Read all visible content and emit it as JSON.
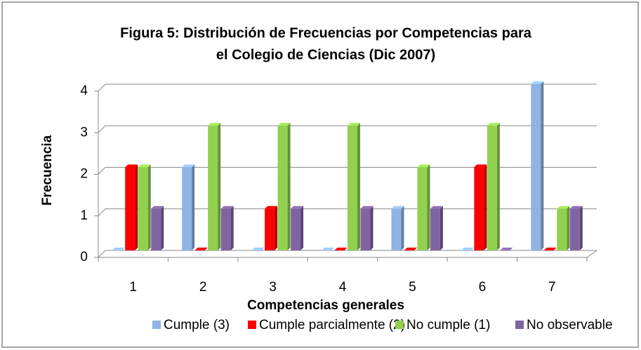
{
  "chart_data": {
    "type": "bar3d",
    "title": [
      "Figura 5: Distribución de Frecuencias por Competencias para",
      "el Colegio de Ciencias (Dic 2007)"
    ],
    "xlabel": "Competencias generales",
    "ylabel": "Frecuencia",
    "categories": [
      "1",
      "2",
      "3",
      "4",
      "5",
      "6",
      "7"
    ],
    "series": [
      {
        "name": "Cumple (3)",
        "color": "#8db4e2",
        "values": [
          0,
          2,
          0,
          0,
          1,
          0,
          4
        ]
      },
      {
        "name": "Cumple parcialmente (2)",
        "color": "#ff0000",
        "values": [
          2,
          0,
          1,
          0,
          0,
          2,
          0
        ]
      },
      {
        "name": "No cumple (1)",
        "color": "#92d050",
        "values": [
          2,
          3,
          3,
          3,
          2,
          3,
          1
        ]
      },
      {
        "name": "No observable",
        "color": "#8064a2",
        "values": [
          1,
          1,
          1,
          1,
          1,
          0,
          1
        ]
      }
    ],
    "ylim": [
      0,
      4
    ],
    "yticks": [
      0,
      1,
      2,
      3,
      4
    ],
    "grid": true,
    "legend": "bottom"
  }
}
